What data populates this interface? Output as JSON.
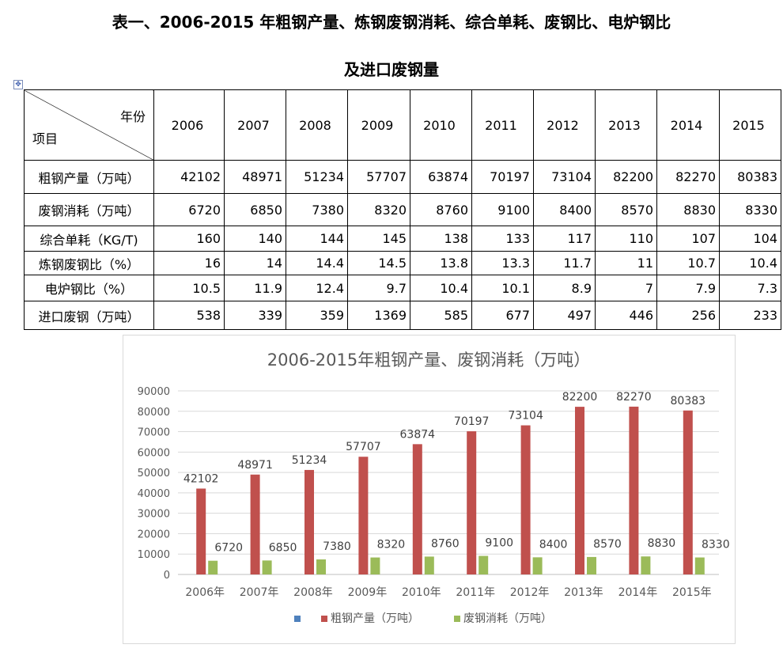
{
  "title_line1": "表一、2006-2015 年粗钢产量、炼钢废钢消耗、综合单耗、废钢比、电炉钢比",
  "title_line2": "及进口废钢量",
  "table": {
    "corner_top": "年份",
    "corner_bottom": "项目",
    "years": [
      "2006",
      "2007",
      "2008",
      "2009",
      "2010",
      "2011",
      "2012",
      "2013",
      "2014",
      "2015"
    ],
    "rows": [
      {
        "label": "粗钢产量（万吨）",
        "values": [
          "42102",
          "48971",
          "51234",
          "57707",
          "63874",
          "70197",
          "73104",
          "82200",
          "82270",
          "80383"
        ]
      },
      {
        "label": "废钢消耗（万吨）",
        "values": [
          "6720",
          "6850",
          "7380",
          "8320",
          "8760",
          "9100",
          "8400",
          "8570",
          "8830",
          "8330"
        ]
      },
      {
        "label": "综合单耗（KG/T)",
        "values": [
          "160",
          "140",
          "144",
          "145",
          "138",
          "133",
          "117",
          "110",
          "107",
          "104"
        ]
      },
      {
        "label": "炼钢废钢比（%）",
        "values": [
          "16",
          "14",
          "14.4",
          "14.5",
          "13.8",
          "13.3",
          "11.7",
          "11",
          "10.7",
          "10.4"
        ]
      },
      {
        "label": "电炉钢比（%）",
        "values": [
          "10.5",
          "11.9",
          "12.4",
          "9.7",
          "10.4",
          "10.1",
          "8.9",
          "7",
          "7.9",
          "7.3"
        ]
      },
      {
        "label": "进口废钢（万吨）",
        "values": [
          "538",
          "339",
          "359",
          "1369",
          "585",
          "677",
          "497",
          "446",
          "256",
          "233"
        ]
      }
    ]
  },
  "chart_data": {
    "type": "bar",
    "title": "2006-2015年粗钢产量、废钢消耗（万吨）",
    "categories": [
      "2006年",
      "2007年",
      "2008年",
      "2009年",
      "2010年",
      "2011年",
      "2012年",
      "2013年",
      "2014年",
      "2015年"
    ],
    "ylim": [
      0,
      90000
    ],
    "yticks": [
      "0",
      "10000",
      "20000",
      "30000",
      "40000",
      "50000",
      "60000",
      "70000",
      "80000",
      "90000"
    ],
    "grid": true,
    "legend_position": "bottom",
    "legend_empty_color": "#4f81bd",
    "series": [
      {
        "name": "粗钢产量（万吨）",
        "color": "#c0504d",
        "values": [
          42102,
          48971,
          51234,
          57707,
          63874,
          70197,
          73104,
          82200,
          82270,
          80383
        ]
      },
      {
        "name": "废钢消耗（万吨）",
        "color": "#9bbb59",
        "values": [
          6720,
          6850,
          7380,
          8320,
          8760,
          9100,
          8400,
          8570,
          8830,
          8330
        ]
      }
    ]
  }
}
